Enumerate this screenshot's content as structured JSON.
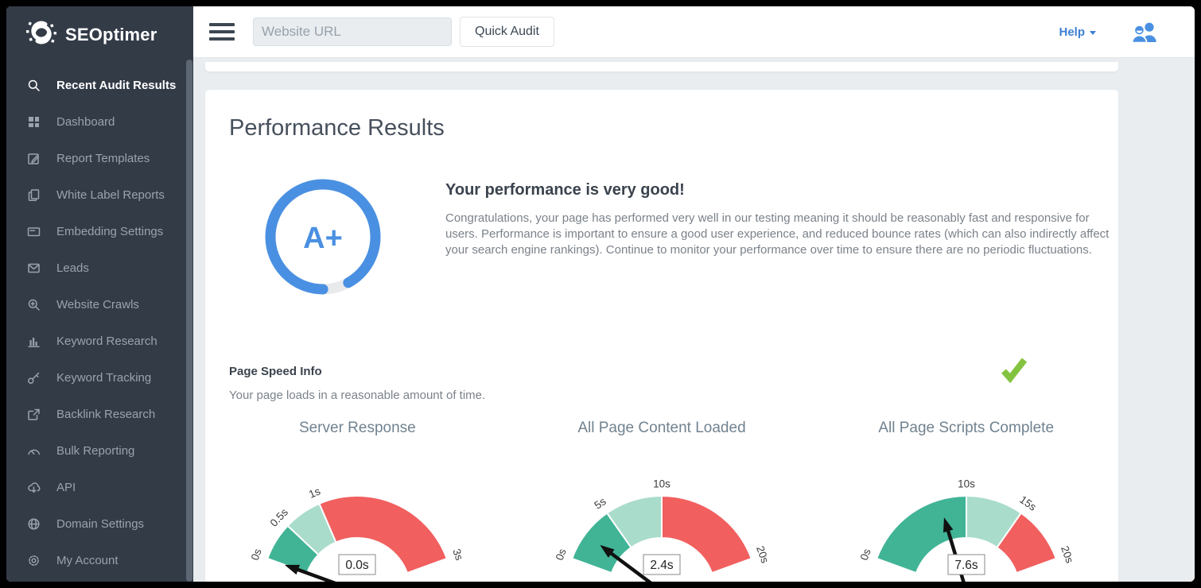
{
  "sidebar": {
    "logo_text": "SEOptimer",
    "items": [
      {
        "label": "Recent Audit Results",
        "icon": "search",
        "active": true
      },
      {
        "label": "Dashboard",
        "icon": "dashboard",
        "active": false
      },
      {
        "label": "Report Templates",
        "icon": "edit",
        "active": false
      },
      {
        "label": "White Label Reports",
        "icon": "pages",
        "active": false
      },
      {
        "label": "Embedding Settings",
        "icon": "embed-card",
        "active": false
      },
      {
        "label": "Leads",
        "icon": "envelope",
        "active": false
      },
      {
        "label": "Website Crawls",
        "icon": "zoom-in",
        "active": false
      },
      {
        "label": "Keyword Research",
        "icon": "bar-chart",
        "active": false
      },
      {
        "label": "Keyword Tracking",
        "icon": "key",
        "active": false
      },
      {
        "label": "Backlink Research",
        "icon": "external-link",
        "active": false
      },
      {
        "label": "Bulk Reporting",
        "icon": "speedometer",
        "active": false
      },
      {
        "label": "API",
        "icon": "cloud-download",
        "active": false
      },
      {
        "label": "Domain Settings",
        "icon": "globe",
        "active": false
      },
      {
        "label": "My Account",
        "icon": "gear",
        "active": false
      }
    ]
  },
  "topbar": {
    "url_placeholder": "Website URL",
    "quick_audit_label": "Quick Audit",
    "help_label": "Help"
  },
  "page": {
    "title": "Performance Results",
    "grade": "A+",
    "headline": "Your performance is very good!",
    "description": "Congratulations, your page has performed very well in our testing meaning it should be reasonably fast and responsive for users. Performance is important to ensure a good user experience, and reduced bounce rates (which can also indirectly affect your search engine rankings). Continue to monitor your performance over time to ensure there are no periodic fluctuations.",
    "section_title": "Page Speed Info",
    "section_subtitle": "Your page loads in a reasonable amount of time."
  },
  "colors": {
    "accent_blue": "#4a90e2",
    "help_blue": "#3e7fd4",
    "check_green": "#84c340",
    "gauge_good": "#41b496",
    "gauge_ok": "#a9dccb",
    "gauge_bad": "#f15f5f",
    "sidebar_bg": "#333b47"
  },
  "chart_data": [
    {
      "type": "gauge",
      "title": "Server Response",
      "min": 0,
      "max": 3,
      "value": 0.0,
      "value_label": "0.0s",
      "ticks": [
        {
          "v": 0,
          "label": "0s"
        },
        {
          "v": 0.5,
          "label": "0.5s"
        },
        {
          "v": 1,
          "label": "1s"
        },
        {
          "v": 3,
          "label": "3s"
        }
      ],
      "segments": [
        {
          "from": 0,
          "to": 0.5,
          "color": "#41b496"
        },
        {
          "from": 0.5,
          "to": 1,
          "color": "#a9dccb"
        },
        {
          "from": 1,
          "to": 3,
          "color": "#f15f5f"
        }
      ]
    },
    {
      "type": "gauge",
      "title": "All Page Content Loaded",
      "min": 0,
      "max": 20,
      "value": 2.4,
      "value_label": "2.4s",
      "ticks": [
        {
          "v": 0,
          "label": "0s"
        },
        {
          "v": 5,
          "label": "5s"
        },
        {
          "v": 10,
          "label": "10s"
        },
        {
          "v": 20,
          "label": "20s"
        }
      ],
      "segments": [
        {
          "from": 0,
          "to": 5,
          "color": "#41b496"
        },
        {
          "from": 5,
          "to": 10,
          "color": "#a9dccb"
        },
        {
          "from": 10,
          "to": 20,
          "color": "#f15f5f"
        }
      ]
    },
    {
      "type": "gauge",
      "title": "All Page Scripts Complete",
      "min": 0,
      "max": 20,
      "value": 7.6,
      "value_label": "7.6s",
      "ticks": [
        {
          "v": 0,
          "label": "0s"
        },
        {
          "v": 10,
          "label": "10s"
        },
        {
          "v": 15,
          "label": "15s"
        },
        {
          "v": 20,
          "label": "20s"
        }
      ],
      "segments": [
        {
          "from": 0,
          "to": 10,
          "color": "#41b496"
        },
        {
          "from": 10,
          "to": 15,
          "color": "#a9dccb"
        },
        {
          "from": 15,
          "to": 20,
          "color": "#f15f5f"
        }
      ]
    }
  ]
}
